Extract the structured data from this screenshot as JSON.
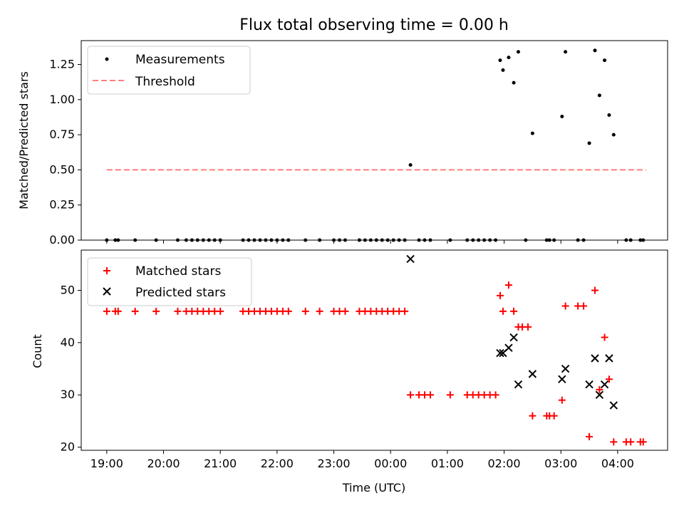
{
  "chart_data": [
    {
      "type": "scatter",
      "title": "Flux total observing time = 0.00 h",
      "ylabel": "Matched/Predicted stars",
      "xlabel": "",
      "ylim": [
        0,
        1.42
      ],
      "yticks": [
        "0.00",
        "0.25",
        "0.50",
        "0.75",
        "1.00",
        "1.25"
      ],
      "grid": false,
      "legend_position": "top-left",
      "series": [
        {
          "name": "Measurements",
          "color": "#000000",
          "marker": "dot",
          "points": [
            [
              0.0,
              0
            ],
            [
              0.15,
              0
            ],
            [
              0.2,
              0
            ],
            [
              0.5,
              0
            ],
            [
              0.87,
              0
            ],
            [
              1.25,
              0
            ],
            [
              1.4,
              0
            ],
            [
              1.5,
              0
            ],
            [
              1.6,
              0
            ],
            [
              1.7,
              0
            ],
            [
              1.8,
              0
            ],
            [
              1.9,
              0
            ],
            [
              2.0,
              0
            ],
            [
              2.4,
              0
            ],
            [
              2.5,
              0
            ],
            [
              2.6,
              0
            ],
            [
              2.7,
              0
            ],
            [
              2.8,
              0
            ],
            [
              2.9,
              0
            ],
            [
              3.0,
              0
            ],
            [
              3.1,
              0
            ],
            [
              3.2,
              0
            ],
            [
              3.5,
              0
            ],
            [
              3.75,
              0
            ],
            [
              4.0,
              0
            ],
            [
              4.1,
              0
            ],
            [
              4.2,
              0
            ],
            [
              4.45,
              0
            ],
            [
              4.55,
              0
            ],
            [
              4.65,
              0
            ],
            [
              4.75,
              0
            ],
            [
              4.85,
              0
            ],
            [
              4.95,
              0
            ],
            [
              5.05,
              0
            ],
            [
              5.15,
              0
            ],
            [
              5.25,
              0
            ],
            [
              5.35,
              0.535
            ],
            [
              5.5,
              0
            ],
            [
              5.6,
              0
            ],
            [
              5.7,
              0
            ],
            [
              6.05,
              0
            ],
            [
              6.35,
              0
            ],
            [
              6.45,
              0
            ],
            [
              6.55,
              0
            ],
            [
              6.65,
              0
            ],
            [
              6.75,
              0
            ],
            [
              6.85,
              0
            ],
            [
              6.93,
              1.28
            ],
            [
              6.98,
              1.21
            ],
            [
              7.08,
              1.3
            ],
            [
              7.17,
              1.12
            ],
            [
              7.25,
              1.34
            ],
            [
              7.38,
              0
            ],
            [
              7.5,
              0.76
            ],
            [
              7.75,
              0
            ],
            [
              7.8,
              0
            ],
            [
              7.88,
              0
            ],
            [
              8.02,
              0.88
            ],
            [
              8.08,
              1.34
            ],
            [
              8.3,
              0
            ],
            [
              8.4,
              0
            ],
            [
              8.5,
              0.69
            ],
            [
              8.6,
              1.35
            ],
            [
              8.68,
              1.03
            ],
            [
              8.77,
              1.28
            ],
            [
              8.85,
              0.89
            ],
            [
              8.93,
              0.75
            ],
            [
              9.15,
              0
            ],
            [
              9.23,
              0
            ],
            [
              9.4,
              0
            ],
            [
              9.45,
              0
            ]
          ]
        },
        {
          "name": "Threshold",
          "color": "#ff7f7f",
          "marker": "dashed-line",
          "points": [
            [
              0.0,
              0.5
            ],
            [
              9.5,
              0.5
            ]
          ]
        }
      ]
    },
    {
      "type": "scatter",
      "title": "",
      "xlabel": "Time (UTC)",
      "ylabel": "Count",
      "ylim": [
        19.4,
        57.7
      ],
      "yticks": [
        "20",
        "30",
        "40",
        "50"
      ],
      "xlim": [
        -0.45,
        9.88
      ],
      "x_tick_positions": [
        0,
        1,
        2,
        3,
        4,
        5,
        6,
        7,
        8,
        9
      ],
      "x_tick_labels": [
        "19:00",
        "20:00",
        "21:00",
        "22:00",
        "23:00",
        "00:00",
        "01:00",
        "02:00",
        "03:00",
        "04:00"
      ],
      "grid": false,
      "legend_position": "top-left",
      "series": [
        {
          "name": "Matched stars",
          "color": "#ff0000",
          "marker": "plus",
          "points": [
            [
              0.0,
              46
            ],
            [
              0.15,
              46
            ],
            [
              0.2,
              46
            ],
            [
              0.5,
              46
            ],
            [
              0.87,
              46
            ],
            [
              1.25,
              46
            ],
            [
              1.4,
              46
            ],
            [
              1.5,
              46
            ],
            [
              1.6,
              46
            ],
            [
              1.7,
              46
            ],
            [
              1.8,
              46
            ],
            [
              1.9,
              46
            ],
            [
              2.0,
              46
            ],
            [
              2.4,
              46
            ],
            [
              2.5,
              46
            ],
            [
              2.6,
              46
            ],
            [
              2.7,
              46
            ],
            [
              2.8,
              46
            ],
            [
              2.9,
              46
            ],
            [
              3.0,
              46
            ],
            [
              3.1,
              46
            ],
            [
              3.2,
              46
            ],
            [
              3.5,
              46
            ],
            [
              3.75,
              46
            ],
            [
              4.0,
              46
            ],
            [
              4.1,
              46
            ],
            [
              4.2,
              46
            ],
            [
              4.45,
              46
            ],
            [
              4.55,
              46
            ],
            [
              4.65,
              46
            ],
            [
              4.75,
              46
            ],
            [
              4.85,
              46
            ],
            [
              4.95,
              46
            ],
            [
              5.05,
              46
            ],
            [
              5.15,
              46
            ],
            [
              5.25,
              46
            ],
            [
              5.35,
              30
            ],
            [
              5.5,
              30
            ],
            [
              5.6,
              30
            ],
            [
              5.7,
              30
            ],
            [
              6.05,
              30
            ],
            [
              6.35,
              30
            ],
            [
              6.45,
              30
            ],
            [
              6.55,
              30
            ],
            [
              6.65,
              30
            ],
            [
              6.75,
              30
            ],
            [
              6.85,
              30
            ],
            [
              6.93,
              49
            ],
            [
              6.98,
              46
            ],
            [
              7.08,
              51
            ],
            [
              7.17,
              46
            ],
            [
              7.25,
              43
            ],
            [
              7.32,
              43
            ],
            [
              7.42,
              43
            ],
            [
              7.5,
              26
            ],
            [
              7.75,
              26
            ],
            [
              7.8,
              26
            ],
            [
              7.88,
              26
            ],
            [
              8.02,
              29
            ],
            [
              8.08,
              47
            ],
            [
              8.3,
              47
            ],
            [
              8.4,
              47
            ],
            [
              8.5,
              22
            ],
            [
              8.6,
              50
            ],
            [
              8.68,
              31
            ],
            [
              8.77,
              41
            ],
            [
              8.85,
              33
            ],
            [
              8.93,
              21
            ],
            [
              9.15,
              21
            ],
            [
              9.23,
              21
            ],
            [
              9.4,
              21
            ],
            [
              9.45,
              21
            ]
          ]
        },
        {
          "name": "Predicted stars",
          "color": "#000000",
          "marker": "x",
          "points": [
            [
              5.35,
              56
            ],
            [
              6.93,
              38
            ],
            [
              6.98,
              38
            ],
            [
              7.08,
              39
            ],
            [
              7.17,
              41
            ],
            [
              7.25,
              32
            ],
            [
              7.5,
              34
            ],
            [
              8.02,
              33
            ],
            [
              8.08,
              35
            ],
            [
              8.5,
              32
            ],
            [
              8.6,
              37
            ],
            [
              8.68,
              30
            ],
            [
              8.77,
              32
            ],
            [
              8.85,
              37
            ],
            [
              8.93,
              28
            ]
          ]
        }
      ]
    }
  ]
}
